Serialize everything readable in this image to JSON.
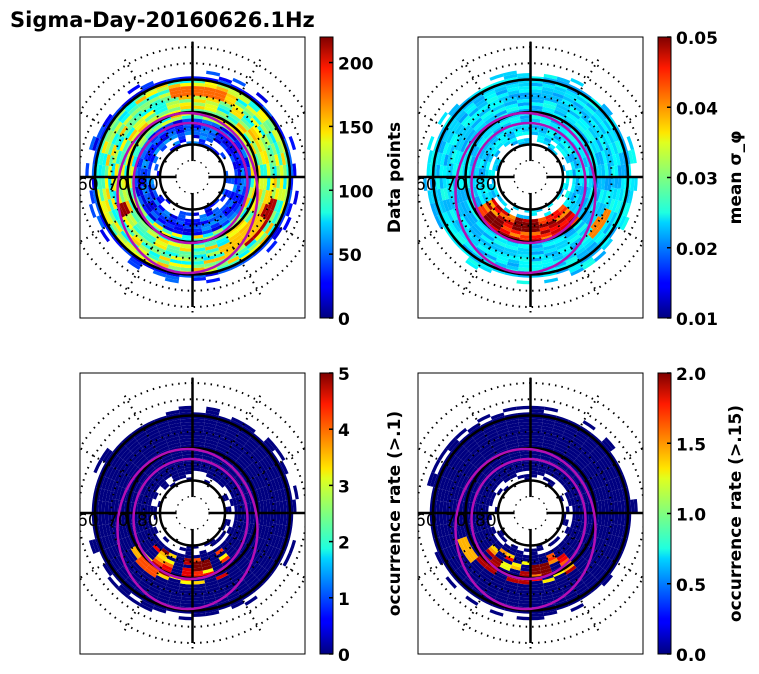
{
  "figure": {
    "title": "Sigma-Day-20160626.1Hz"
  },
  "chart_data": [
    {
      "type": "heatmap",
      "projection": "polar (magnetic latitude / MLT)",
      "panel": "top-left",
      "colormap": "jet",
      "colorbar": {
        "label": "Data points",
        "range": [
          0,
          220
        ],
        "ticks": [
          0,
          50,
          100,
          150,
          200
        ],
        "tick_labels": [
          "0",
          "50",
          "100",
          "150",
          "200"
        ]
      },
      "lat_circle_labels": [
        "60",
        "70",
        "80"
      ],
      "data_lat_range": [
        57,
        80
      ],
      "description": "Counts ring with high values (150-220) in dusk/pre-midnight 60-70 lat and near noon at 65 lat; low (<50) inside 75 lat",
      "sector_highlights": [
        {
          "mlat": 64,
          "mlt_range": [
            19,
            21
          ],
          "value": 210
        },
        {
          "mlat": 63,
          "mlt_range": [
            11,
            13
          ],
          "value": 170
        },
        {
          "mlat": 66,
          "mlt_range": [
            3.5,
            4.5
          ],
          "value": 215
        },
        {
          "mlat": 65,
          "mlt_range": [
            20,
            22
          ],
          "value": 150
        }
      ]
    },
    {
      "type": "heatmap",
      "projection": "polar (magnetic latitude / MLT)",
      "panel": "top-right",
      "colormap": "jet",
      "colorbar": {
        "label": "mean σ_φ",
        "range": [
          0.01,
          0.05
        ],
        "ticks": [
          0.01,
          0.02,
          0.03,
          0.04,
          0.05
        ],
        "tick_labels": [
          "0.01",
          "0.02",
          "0.03",
          "0.04",
          "0.05"
        ]
      },
      "lat_circle_labels": [
        "60",
        "70",
        "80"
      ],
      "data_lat_range": [
        57,
        80
      ],
      "description": "Mostly 0.02-0.025 across ring; elevated 0.045-0.05 near midnight 72-76 lat",
      "sector_highlights": [
        {
          "mlat": 74,
          "mlt_range": [
            23,
            1
          ],
          "value": 0.05
        },
        {
          "mlat": 72,
          "mlt_range": [
            2,
            3
          ],
          "value": 0.05
        },
        {
          "mlat": 64,
          "mlt_range": [
            19.5,
            20.5
          ],
          "value": 0.04
        }
      ]
    },
    {
      "type": "heatmap",
      "projection": "polar (magnetic latitude / MLT)",
      "panel": "bottom-left",
      "colormap": "jet",
      "colorbar": {
        "label": "occurrence rate (>.1)",
        "range": [
          0,
          5
        ],
        "ticks": [
          0,
          1,
          2,
          3,
          4,
          5
        ],
        "tick_labels": [
          "0",
          "1",
          "2",
          "3",
          "4",
          "5"
        ]
      },
      "lat_circle_labels": [
        "60",
        "70",
        "80"
      ],
      "data_lat_range": [
        57,
        80
      ],
      "description": "Near zero everywhere except midnight sector 70-75 lat (4-5%)",
      "sector_highlights": [
        {
          "mlat": 73,
          "mlt_range": [
            22.5,
            23.5
          ],
          "value": 5
        },
        {
          "mlat": 71,
          "mlt_range": [
            23.5,
            0.5
          ],
          "value": 4.5
        },
        {
          "mlat": 68,
          "mlt_range": [
            2,
            3
          ],
          "value": 4
        },
        {
          "mlat": 69,
          "mlt_range": [
            3,
            3.5
          ],
          "value": 3.5
        }
      ]
    },
    {
      "type": "heatmap",
      "projection": "polar (magnetic latitude / MLT)",
      "panel": "bottom-right",
      "colormap": "jet",
      "colorbar": {
        "label": "occurrence rate (>.15)",
        "range": [
          0,
          2
        ],
        "ticks": [
          0,
          0.5,
          1.0,
          1.5,
          2.0
        ],
        "tick_labels": [
          "0.0",
          "0.5",
          "1.0",
          "1.5",
          "2.0"
        ]
      },
      "lat_circle_labels": [
        "60",
        "70",
        "80"
      ],
      "data_lat_range": [
        57,
        80
      ],
      "description": "Near zero except few bins near midnight at 70-73 lat",
      "sector_highlights": [
        {
          "mlat": 72,
          "mlt_range": [
            22.5,
            23.5
          ],
          "value": 2.0
        },
        {
          "mlat": 70,
          "mlt_range": [
            23.5,
            0.5
          ],
          "value": 1.9
        },
        {
          "mlat": 69,
          "mlt_range": [
            2,
            3
          ],
          "value": 1.9
        },
        {
          "mlat": 67,
          "mlt_range": [
            3,
            4
          ],
          "value": 1.4
        }
      ]
    }
  ]
}
